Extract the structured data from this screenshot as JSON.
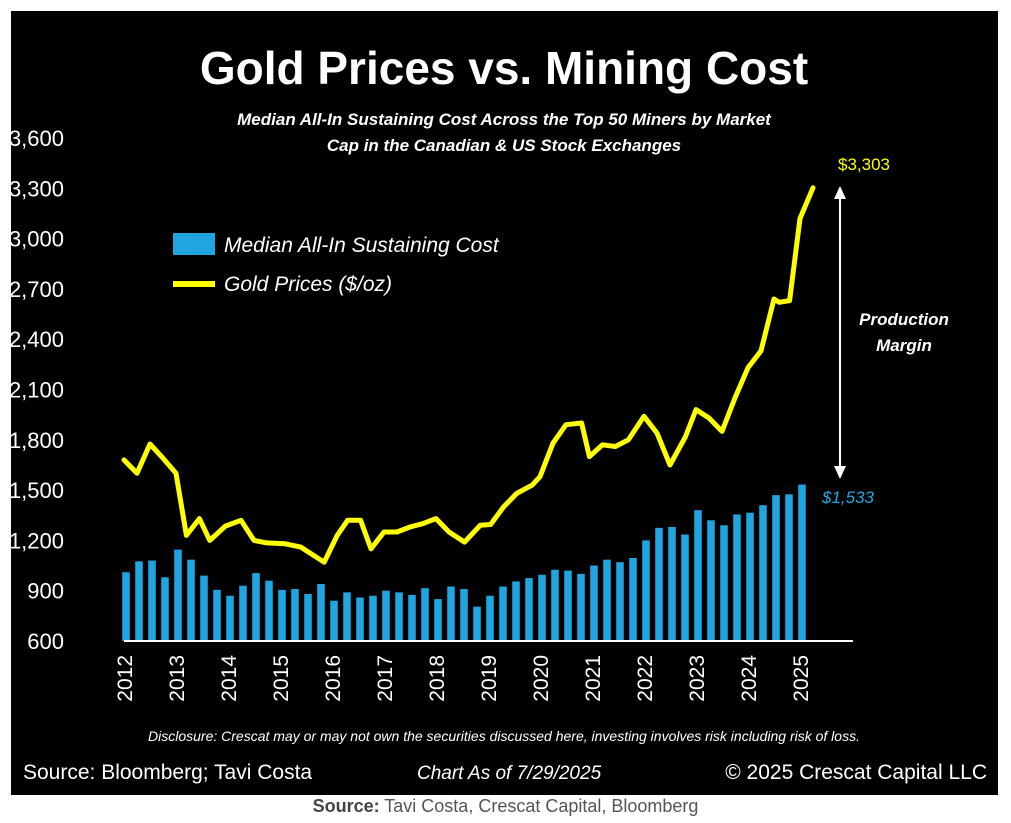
{
  "chart_data": {
    "type": "bar+line",
    "title": "Gold Prices vs. Mining Cost",
    "subtitle": [
      "Median All-In Sustaining Cost Across the Top 50 Miners by Market",
      "Cap in the Canadian & US Stock Exchanges"
    ],
    "ylim": [
      600,
      3600
    ],
    "yticks": [
      600,
      900,
      1200,
      1500,
      1800,
      2100,
      2400,
      2700,
      3000,
      3300,
      3600
    ],
    "ytick_labels": [
      "600",
      "900",
      "1,200",
      "1,500",
      "1,800",
      "2,100",
      "2,400",
      "2,700",
      "3,000",
      "3,300",
      "3,600"
    ],
    "xlim": [
      2012,
      2025.6
    ],
    "xticks": [
      "2012",
      "2013",
      "2014",
      "2015",
      "2016",
      "2017",
      "2018",
      "2019",
      "2020",
      "2021",
      "2022",
      "2023",
      "2024",
      "2025"
    ],
    "series": [
      {
        "name": "Median All-In Sustaining Cost",
        "kind": "bar",
        "color": "#1fa6e0",
        "x_start": 2012,
        "step": 0.25,
        "values": [
          1010,
          1075,
          1080,
          980,
          1145,
          1085,
          990,
          905,
          870,
          930,
          1005,
          960,
          905,
          910,
          880,
          940,
          840,
          890,
          860,
          870,
          900,
          890,
          875,
          915,
          850,
          925,
          910,
          805,
          870,
          925,
          955,
          975,
          995,
          1025,
          1020,
          1000,
          1050,
          1085,
          1070,
          1095,
          1200,
          1275,
          1280,
          1235,
          1380,
          1320,
          1290,
          1355,
          1365,
          1410,
          1470,
          1475,
          1533
        ]
      },
      {
        "name": "Gold Prices ($/oz)",
        "kind": "line",
        "color": "#ffff00",
        "points": [
          [
            2012.0,
            1680
          ],
          [
            2012.25,
            1600
          ],
          [
            2012.5,
            1775
          ],
          [
            2012.75,
            1690
          ],
          [
            2013.0,
            1600
          ],
          [
            2013.2,
            1230
          ],
          [
            2013.45,
            1330
          ],
          [
            2013.65,
            1200
          ],
          [
            2013.95,
            1285
          ],
          [
            2014.25,
            1320
          ],
          [
            2014.5,
            1200
          ],
          [
            2014.75,
            1185
          ],
          [
            2015.1,
            1180
          ],
          [
            2015.4,
            1160
          ],
          [
            2015.7,
            1100
          ],
          [
            2015.85,
            1070
          ],
          [
            2016.1,
            1230
          ],
          [
            2016.3,
            1320
          ],
          [
            2016.55,
            1320
          ],
          [
            2016.75,
            1150
          ],
          [
            2017.0,
            1250
          ],
          [
            2017.25,
            1250
          ],
          [
            2017.5,
            1280
          ],
          [
            2017.75,
            1300
          ],
          [
            2018.0,
            1330
          ],
          [
            2018.25,
            1250
          ],
          [
            2018.55,
            1190
          ],
          [
            2018.85,
            1290
          ],
          [
            2019.05,
            1295
          ],
          [
            2019.3,
            1400
          ],
          [
            2019.55,
            1480
          ],
          [
            2019.85,
            1530
          ],
          [
            2020.0,
            1580
          ],
          [
            2020.25,
            1780
          ],
          [
            2020.5,
            1890
          ],
          [
            2020.8,
            1900
          ],
          [
            2020.95,
            1700
          ],
          [
            2021.2,
            1770
          ],
          [
            2021.45,
            1760
          ],
          [
            2021.7,
            1800
          ],
          [
            2022.0,
            1940
          ],
          [
            2022.25,
            1840
          ],
          [
            2022.5,
            1650
          ],
          [
            2022.8,
            1820
          ],
          [
            2023.0,
            1980
          ],
          [
            2023.25,
            1930
          ],
          [
            2023.5,
            1850
          ],
          [
            2023.75,
            2050
          ],
          [
            2024.0,
            2230
          ],
          [
            2024.25,
            2330
          ],
          [
            2024.5,
            2640
          ],
          [
            2024.6,
            2620
          ],
          [
            2024.8,
            2630
          ],
          [
            2025.0,
            3120
          ],
          [
            2025.25,
            3303
          ]
        ]
      }
    ],
    "annotations": {
      "gold_end_label": "$3,303",
      "cost_end_label": "$1,533",
      "margin_label": [
        "Production",
        "Margin"
      ]
    },
    "legend": {
      "placement": "top-left",
      "entries": [
        "Median All-In Sustaining Cost",
        "Gold Prices ($/oz)"
      ]
    },
    "grid": false,
    "background": "#000000"
  },
  "footer": {
    "disclosure": "Disclosure: Crescat may or may not own the securities discussed here, investing involves risk including risk of loss.",
    "source": "Source: Bloomberg; Tavi Costa",
    "chart_date": "Chart As of 7/29/2025",
    "copyright": "© 2025 Crescat Capital LLC"
  },
  "caption": {
    "label": "Source:",
    "text": " Tavi Costa, Crescat Capital, Bloomberg"
  }
}
